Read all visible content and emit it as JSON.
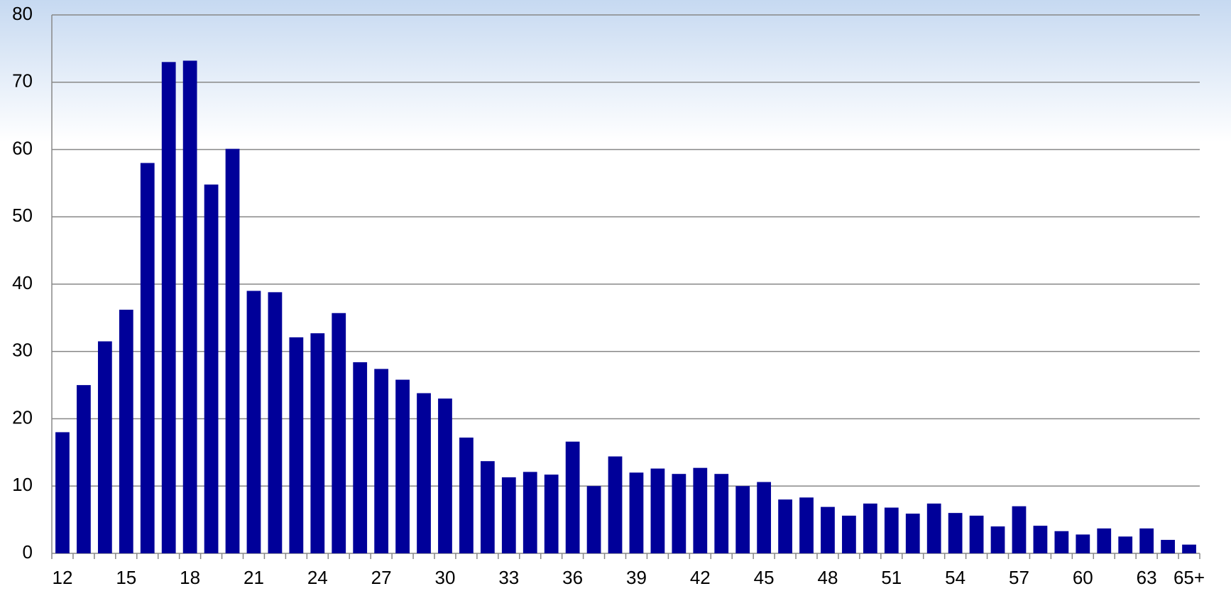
{
  "chart_data": {
    "type": "bar",
    "categories": [
      "12",
      null,
      null,
      "15",
      null,
      null,
      "18",
      null,
      null,
      "21",
      null,
      null,
      "24",
      null,
      null,
      "27",
      null,
      null,
      "30",
      null,
      null,
      "33",
      null,
      null,
      "36",
      null,
      null,
      "39",
      null,
      null,
      "42",
      null,
      null,
      "45",
      null,
      null,
      "48",
      null,
      null,
      "51",
      null,
      null,
      "54",
      null,
      null,
      "57",
      null,
      null,
      "60",
      null,
      null,
      "63",
      null,
      "65+"
    ],
    "values": [
      18,
      25,
      31.5,
      36.2,
      58,
      73,
      73.2,
      54.8,
      60.1,
      39,
      38.8,
      32.1,
      32.7,
      35.7,
      28.4,
      27.4,
      25.8,
      23.8,
      23,
      17.2,
      13.7,
      11.3,
      12.1,
      11.7,
      16.6,
      10,
      14.4,
      12,
      12.6,
      11.8,
      12.7,
      11.8,
      10,
      10.6,
      8,
      8.3,
      6.9,
      5.6,
      7.4,
      6.8,
      5.9,
      7.4,
      6,
      5.6,
      4,
      7,
      4.1,
      3.3,
      2.8,
      3.7,
      2.5,
      3.7,
      2,
      1.3
    ],
    "color": "#000099",
    "ylim": [
      0,
      80
    ],
    "yticks": [
      0,
      10,
      20,
      30,
      40,
      50,
      60,
      70,
      80
    ],
    "grid": true
  }
}
